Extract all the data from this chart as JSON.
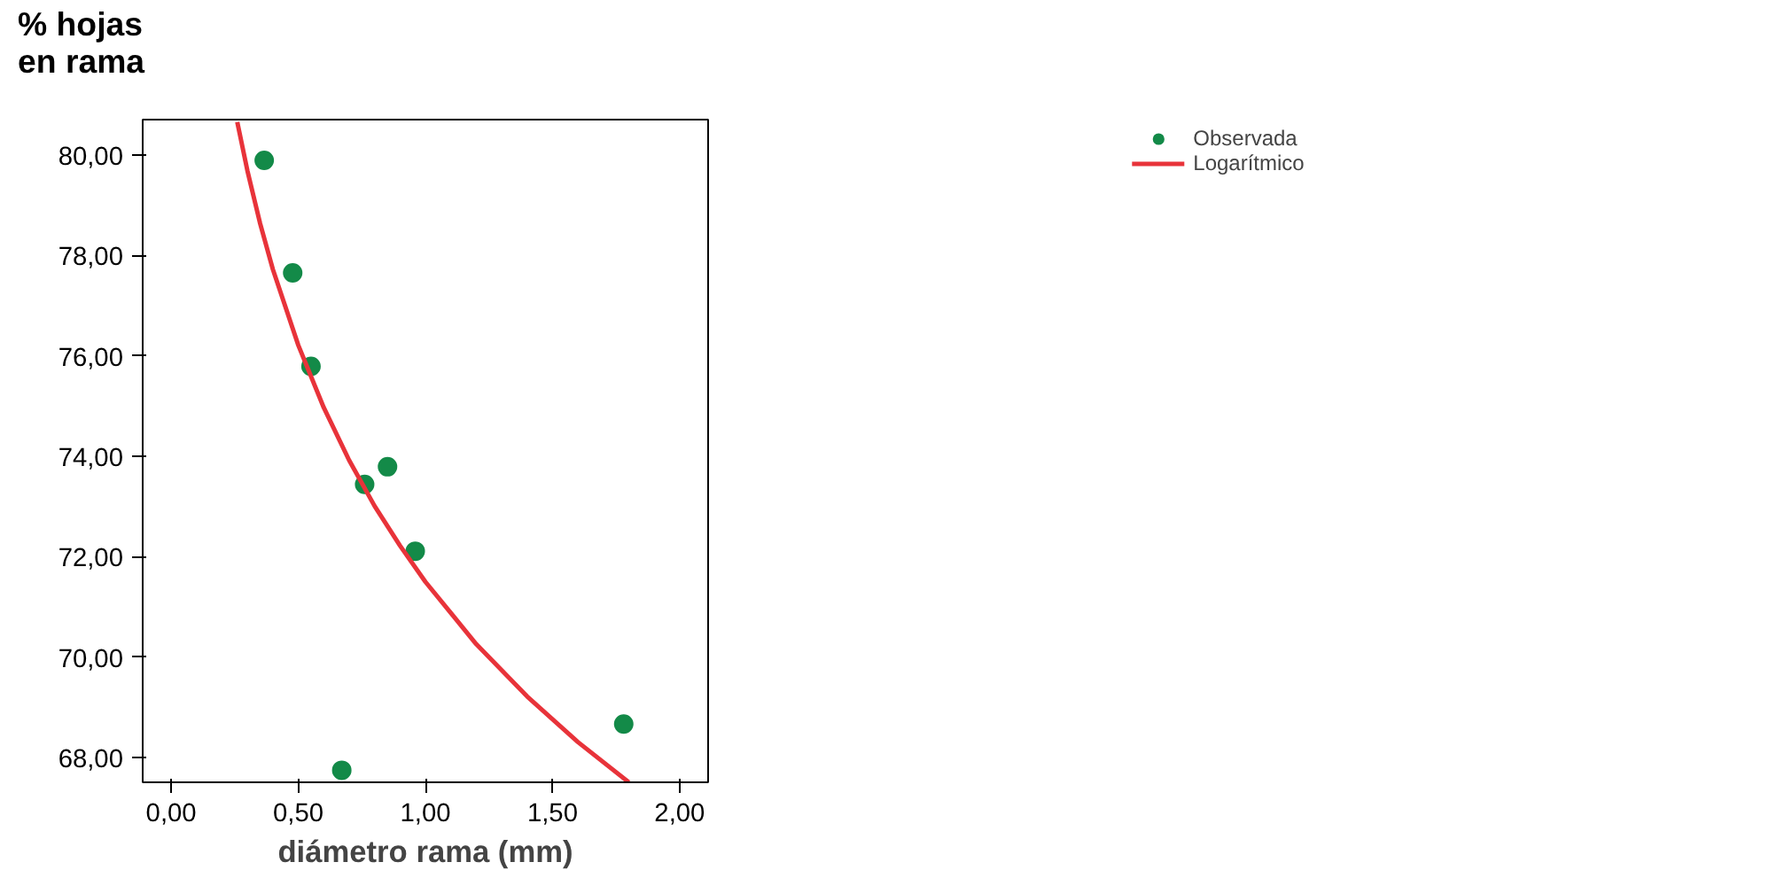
{
  "chart_data": {
    "type": "scatter",
    "ylabel": "% hojas\nen rama",
    "xlabel": "diámetro rama (mm)",
    "xlim": [
      -0.112,
      2.112
    ],
    "ylim": [
      67.51,
      80.7
    ],
    "xticks": [
      {
        "value": 0,
        "label": "0,00"
      },
      {
        "value": 0.5,
        "label": "0,50"
      },
      {
        "value": 1,
        "label": "1,00"
      },
      {
        "value": 1.5,
        "label": "1,50"
      },
      {
        "value": 2,
        "label": "2,00"
      }
    ],
    "yticks": [
      {
        "value": 68,
        "label": "68,00"
      },
      {
        "value": 70,
        "label": "70,00"
      },
      {
        "value": 72,
        "label": "72,00"
      },
      {
        "value": 74,
        "label": "74,00"
      },
      {
        "value": 76,
        "label": "76,00"
      },
      {
        "value": 78,
        "label": "78,00"
      },
      {
        "value": 80,
        "label": "80,00"
      }
    ],
    "grid": false,
    "legend": "top right",
    "series": [
      {
        "name": "Observada",
        "marker": "circle",
        "color": "#138a48",
        "x": [
          0.366,
          0.478,
          0.55,
          0.761,
          0.851,
          0.96,
          0.671,
          1.78
        ],
        "values": [
          79.89,
          77.65,
          75.79,
          73.44,
          73.79,
          72.11,
          67.75,
          68.67
        ]
      },
      {
        "name": "Logarítmico",
        "type": "line",
        "color": "#e8333a",
        "line_style": "solid",
        "x": [
          0.26,
          0.3,
          0.35,
          0.4,
          0.5,
          0.6,
          0.7,
          0.8,
          0.9,
          1.0,
          1.2,
          1.4,
          1.6,
          1.8
        ],
        "values": [
          80.65,
          79.68,
          78.63,
          77.72,
          76.21,
          74.97,
          73.92,
          73.01,
          72.22,
          71.5,
          70.26,
          69.22,
          68.31,
          67.51
        ]
      }
    ]
  }
}
